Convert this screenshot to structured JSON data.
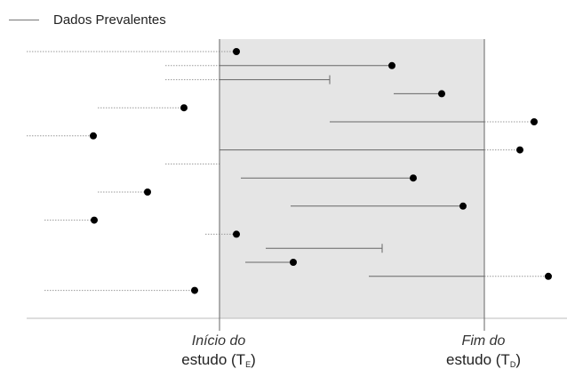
{
  "legend": {
    "label": "Dados Prevalentes"
  },
  "study": {
    "start": {
      "line1": "Início do",
      "line2": "estudo (T",
      "sub": "E",
      "close": ")"
    },
    "end": {
      "line1": "Fim do",
      "line2": "estudo (T",
      "sub": "D",
      "close": ")"
    }
  },
  "colors": {
    "shade": "#e5e5e5",
    "solid_line": "#666666",
    "dotted_line": "#9a9a9a",
    "axis": "#bbbbbb",
    "boundary": "#666666",
    "dot": "#000000"
  },
  "subjects": [
    {
      "dotted": [
        30,
        266
      ],
      "solid": null,
      "event": "dot",
      "end": 266
    },
    {
      "dotted": [
        186,
        247
      ],
      "solid": [
        247,
        441
      ],
      "event": "dot",
      "end": 441
    },
    {
      "dotted": [
        186,
        247
      ],
      "solid": [
        247,
        371
      ],
      "event": "tick",
      "end": 371
    },
    {
      "dotted": null,
      "solid": [
        443,
        497
      ],
      "event": "dot",
      "end": 497
    },
    {
      "dotted": [
        110,
        207
      ],
      "solid": null,
      "event": "dot",
      "end": 207
    },
    {
      "dotted": [
        545,
        601
      ],
      "solid": [
        371,
        545
      ],
      "event": "dot",
      "end": 601
    },
    {
      "dotted": [
        30,
        105
      ],
      "solid": null,
      "event": "dot",
      "end": 105
    },
    {
      "dotted": [
        545,
        585
      ],
      "solid": [
        247,
        545
      ],
      "event": "dot",
      "end": 585
    },
    {
      "dotted": [
        186,
        247
      ],
      "solid": null,
      "event": "none",
      "end": null
    },
    {
      "dotted": null,
      "solid": [
        271,
        465
      ],
      "event": "dot",
      "end": 465
    },
    {
      "dotted": [
        110,
        166
      ],
      "solid": null,
      "event": "dot",
      "end": 166
    },
    {
      "dotted": null,
      "solid": [
        327,
        521
      ],
      "event": "dot",
      "end": 521
    },
    {
      "dotted": [
        50,
        106
      ],
      "solid": null,
      "event": "dot",
      "end": 106
    },
    {
      "dotted": [
        231,
        266
      ],
      "solid": null,
      "event": "dot",
      "end": 266
    },
    {
      "dotted": null,
      "solid": [
        299,
        430
      ],
      "event": "tick",
      "end": 430
    },
    {
      "dotted": null,
      "solid": [
        276,
        330
      ],
      "event": "dot",
      "end": 330
    },
    {
      "dotted": [
        545,
        617
      ],
      "solid": [
        415,
        545
      ],
      "event": "dot",
      "end": 617
    },
    {
      "dotted": [
        50,
        219
      ],
      "solid": null,
      "event": "dot",
      "end": 219
    }
  ]
}
